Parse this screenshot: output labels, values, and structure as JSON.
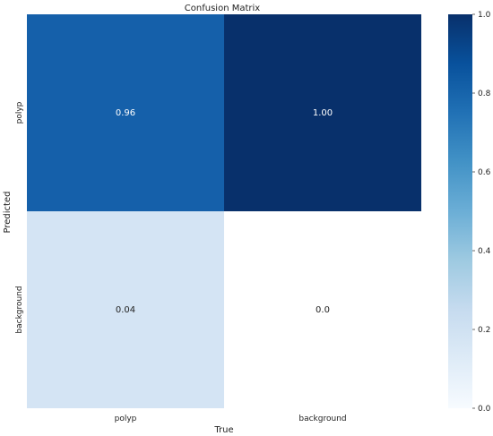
{
  "chart_data": {
    "type": "heatmap",
    "title": "Confusion Matrix",
    "xlabel": "True",
    "ylabel": "Predicted",
    "x_categories": [
      "polyp",
      "background"
    ],
    "y_categories": [
      "polyp",
      "background"
    ],
    "values": [
      [
        0.96,
        1.0
      ],
      [
        0.04,
        null
      ]
    ],
    "annotations": [
      [
        "0.96",
        "1.00"
      ],
      [
        "0.04",
        "0.0"
      ]
    ],
    "colormap": "Blues",
    "colorbar": {
      "range": [
        0.0,
        1.0
      ],
      "ticks": [
        "0.0",
        "0.2",
        "0.4",
        "0.6",
        "0.8",
        "1.0"
      ]
    },
    "cell_colors": [
      [
        "#1560aa",
        "#08306b"
      ],
      [
        "#d4e4f4",
        "#ffffff"
      ]
    ],
    "annotation_colors": [
      [
        "#ffffff",
        "#ffffff"
      ],
      [
        "#222222",
        "#222222"
      ]
    ]
  }
}
